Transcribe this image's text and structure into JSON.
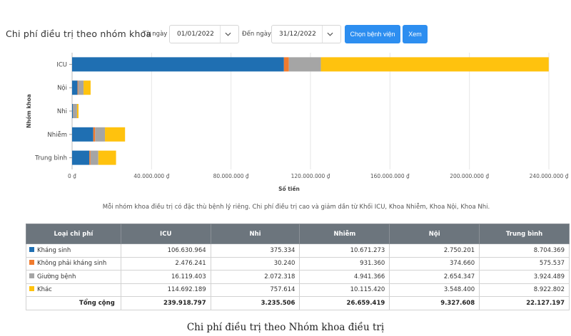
{
  "toolbar": {
    "title": "Chi phí điều trị theo nhóm khoa",
    "from_label": "Từ ngày :",
    "from_value": "01/01/2022",
    "to_label": "Đến ngày :",
    "to_value": "31/12/2022",
    "choose_hospital_label": "Chọn bệnh viện",
    "view_label": "Xem"
  },
  "colors": {
    "khang_sinh": "#1f6fb2",
    "khong_phai_khang_sinh": "#f07b2e",
    "giuong_benh": "#a5a5a5",
    "khac": "#ffc20e",
    "primary": "#2d8ef0",
    "table_header": "#6c757d"
  },
  "chart_data": {
    "type": "bar",
    "orientation": "horizontal",
    "stacked": true,
    "categories": [
      "ICU",
      "Nội",
      "Nhi",
      "Nhiễm",
      "Trung bình"
    ],
    "series": [
      {
        "name": "Kháng sinh",
        "values": [
          106630964,
          2750201,
          375334,
          10671273,
          8704369
        ]
      },
      {
        "name": "Không phải kháng sinh",
        "values": [
          2476241,
          374660,
          30240,
          931360,
          575537
        ]
      },
      {
        "name": "Giường bệnh",
        "values": [
          16119403,
          2654347,
          2072318,
          4941366,
          3924489
        ]
      },
      {
        "name": "Khác",
        "values": [
          114692189,
          3548400,
          757614,
          10115420,
          8922802
        ]
      }
    ],
    "xlabel": "Số tiền",
    "ylabel": "Nhóm khoa",
    "xlim": [
      0,
      240000000
    ],
    "xticks": [
      "0 ₫",
      "40.000.000 ₫",
      "80.000.000 ₫",
      "120.000.000 ₫",
      "160.000.000 ₫",
      "200.000.000 ₫",
      "240.000.000 ₫"
    ],
    "xtick_values": [
      0,
      40000000,
      80000000,
      120000000,
      160000000,
      200000000,
      240000000
    ],
    "grid": true,
    "legend": "none"
  },
  "note": "Mỗi nhóm khoa điều trị có đặc thù bệnh lý riêng. Chi phí điều trị cao và giảm dần từ Khối ICU, Khoa Nhiễm, Khoa Nội, Khoa Nhi.",
  "table": {
    "headers": [
      "Loại chi phí",
      "ICU",
      "Nhi",
      "Nhiễm",
      "Nội",
      "Trung bình"
    ],
    "rows": [
      {
        "label": "Kháng sinh",
        "cells": [
          "106.630.964",
          "375.334",
          "10.671.273",
          "2.750.201",
          "8.704.369"
        ]
      },
      {
        "label": "Không phải kháng sinh",
        "cells": [
          "2.476.241",
          "30.240",
          "931.360",
          "374.660",
          "575.537"
        ]
      },
      {
        "label": "Giường bệnh",
        "cells": [
          "16.119.403",
          "2.072.318",
          "4.941.366",
          "2.654.347",
          "3.924.489"
        ]
      },
      {
        "label": "Khác",
        "cells": [
          "114.692.189",
          "757.614",
          "10.115.420",
          "3.548.400",
          "8.922.802"
        ]
      }
    ],
    "total": {
      "label": "Tổng cộng",
      "cells": [
        "239.918.797",
        "3.235.506",
        "26.659.419",
        "9.327.608",
        "22.127.197"
      ]
    }
  },
  "caption": "Chi phí điều trị theo Nhóm khoa điều trị"
}
